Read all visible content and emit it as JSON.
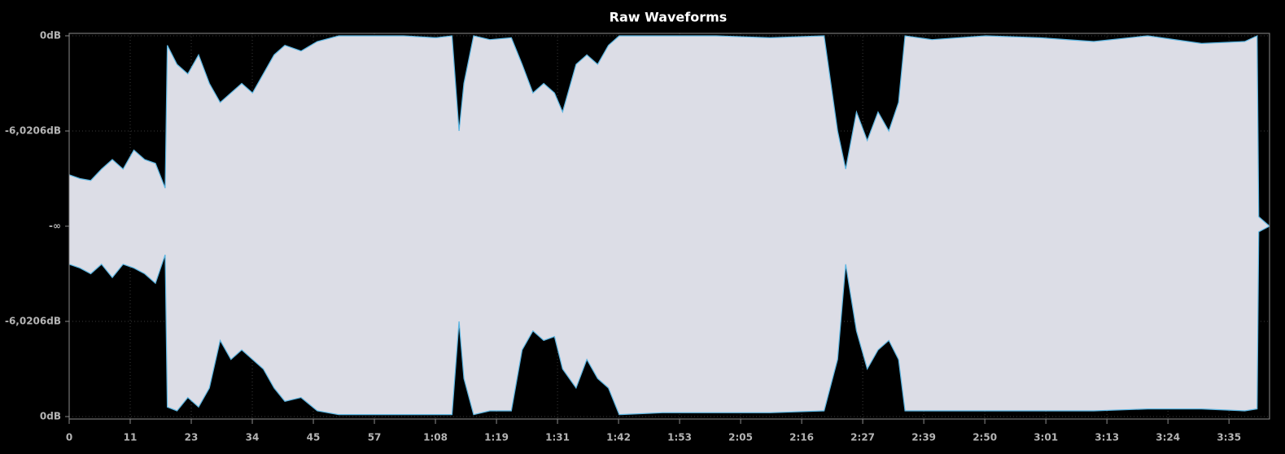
{
  "chart_data": {
    "type": "area",
    "title": "Raw Waveforms",
    "x": [
      0,
      2,
      4,
      6,
      8,
      10,
      12,
      14,
      16,
      17.8,
      18.2,
      20,
      22,
      24,
      26,
      28,
      30,
      32,
      34,
      36,
      38,
      40,
      43,
      46,
      50,
      56,
      62,
      68,
      71,
      72.3,
      73.2,
      75,
      78,
      82,
      84,
      86,
      88,
      90,
      91.5,
      94,
      96,
      98,
      100,
      102,
      110,
      120,
      130,
      140,
      142.5,
      144,
      146,
      148,
      150,
      152,
      153.8,
      155,
      160,
      170,
      180,
      190,
      200,
      210,
      218,
      220.3,
      220.6,
      222.6
    ],
    "series": [
      {
        "color": "#dcdde6",
        "line_color": "#5ab4e0",
        "values": [
          0.27,
          0.25,
          0.24,
          0.3,
          0.35,
          0.3,
          0.4,
          0.35,
          0.33,
          0.2,
          0.95,
          0.85,
          0.8,
          0.9,
          0.75,
          0.65,
          0.7,
          0.75,
          0.7,
          0.8,
          0.9,
          0.95,
          0.92,
          0.97,
          1,
          1,
          1,
          0.99,
          1,
          0.5,
          0.75,
          1,
          0.98,
          0.99,
          0.85,
          0.7,
          0.75,
          0.7,
          0.6,
          0.85,
          0.9,
          0.85,
          0.95,
          1,
          1,
          1,
          0.99,
          1,
          0.5,
          0.3,
          0.6,
          0.45,
          0.6,
          0.5,
          0.65,
          1,
          0.98,
          1,
          0.99,
          0.97,
          1,
          0.96,
          0.97,
          1,
          0.05,
          0
        ]
      },
      {
        "color": "#dcdde6",
        "line_color": "#5ab4e0",
        "values": [
          -0.2,
          -0.22,
          -0.25,
          -0.2,
          -0.27,
          -0.2,
          -0.22,
          -0.25,
          -0.3,
          -0.15,
          -0.95,
          -0.97,
          -0.9,
          -0.95,
          -0.85,
          -0.6,
          -0.7,
          -0.65,
          -0.7,
          -0.75,
          -0.85,
          -0.92,
          -0.9,
          -0.97,
          -0.99,
          -0.99,
          -0.99,
          -0.99,
          -0.99,
          -0.5,
          -0.8,
          -0.99,
          -0.97,
          -0.97,
          -0.65,
          -0.55,
          -0.6,
          -0.58,
          -0.75,
          -0.85,
          -0.7,
          -0.8,
          -0.85,
          -0.99,
          -0.98,
          -0.98,
          -0.98,
          -0.97,
          -0.7,
          -0.2,
          -0.55,
          -0.75,
          -0.65,
          -0.6,
          -0.7,
          -0.97,
          -0.97,
          -0.97,
          -0.97,
          -0.97,
          -0.96,
          -0.96,
          -0.97,
          -0.96,
          -0.03,
          0
        ]
      }
    ],
    "xlim": [
      0,
      222.6
    ],
    "ylim": [
      -1,
      1
    ],
    "xticks": [
      0,
      {
        "value": 11.32,
        "label": "11"
      },
      {
        "value": 22.64,
        "label": "23"
      },
      {
        "value": 33.96,
        "label": "34"
      },
      {
        "value": 45.28,
        "label": "45"
      },
      {
        "value": 56.6,
        "label": "57"
      },
      {
        "value": 67.92,
        "label": "1:08"
      },
      {
        "value": 79.24,
        "label": "1:19"
      },
      {
        "value": 90.56,
        "label": "1:31"
      },
      {
        "value": 101.88,
        "label": "1:42"
      },
      {
        "value": 113.2,
        "label": "1:53"
      },
      {
        "value": 124.52,
        "label": "2:05"
      },
      {
        "value": 135.84,
        "label": "2:16"
      },
      {
        "value": 147.16,
        "label": "2:27"
      },
      {
        "value": 158.48,
        "label": "2:39"
      },
      {
        "value": 169.8,
        "label": "2:50"
      },
      {
        "value": 181.12,
        "label": "3:01"
      },
      {
        "value": 192.44,
        "label": "3:13"
      },
      {
        "value": 203.76,
        "label": "3:24"
      },
      {
        "value": 215.08,
        "label": "3:35"
      }
    ],
    "yticks": [
      {
        "value": 1,
        "label": "0dB"
      },
      {
        "value": 0.5,
        "label": "-6,0206dB"
      },
      {
        "value": 0,
        "label": "-∞"
      },
      {
        "value": -0.5,
        "label": "-6,0206dB"
      },
      {
        "value": -1,
        "label": "0dB"
      }
    ],
    "grid": true
  }
}
